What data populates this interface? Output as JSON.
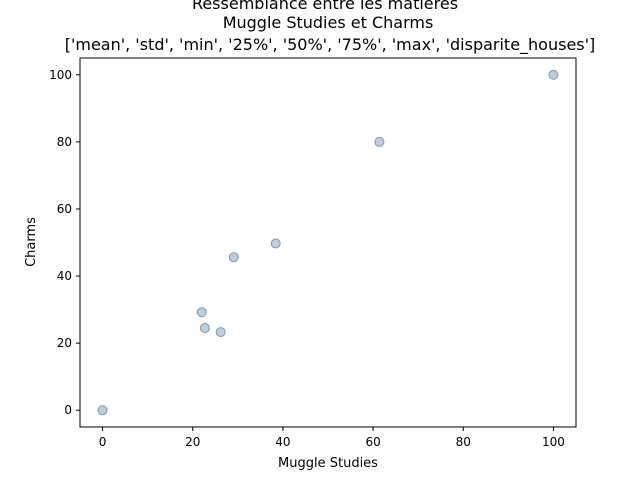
{
  "chart_data": {
    "type": "scatter",
    "title": [
      "Ressemblance entre les matieres",
      "Muggle Studies et Charms",
      "['mean', 'std', 'min', '25%', '50%', '75%', 'max', 'disparite_houses']"
    ],
    "xlabel": "Muggle Studies",
    "ylabel": "Charms",
    "xlim": [
      -5,
      105
    ],
    "ylim": [
      -5,
      105
    ],
    "xticks": [
      0,
      20,
      40,
      60,
      80,
      100
    ],
    "yticks": [
      0,
      20,
      40,
      60,
      80,
      100
    ],
    "grid": false,
    "colors": {
      "marker_fill": "#b0c4d8",
      "marker_edge": "#7f97ad"
    },
    "points": [
      {
        "x": 0,
        "y": 0
      },
      {
        "x": 22,
        "y": 29.2
      },
      {
        "x": 22.7,
        "y": 24.5
      },
      {
        "x": 26.2,
        "y": 23.3
      },
      {
        "x": 29.1,
        "y": 45.6
      },
      {
        "x": 38.4,
        "y": 49.7
      },
      {
        "x": 61.4,
        "y": 80.0
      },
      {
        "x": 100,
        "y": 100
      }
    ]
  }
}
